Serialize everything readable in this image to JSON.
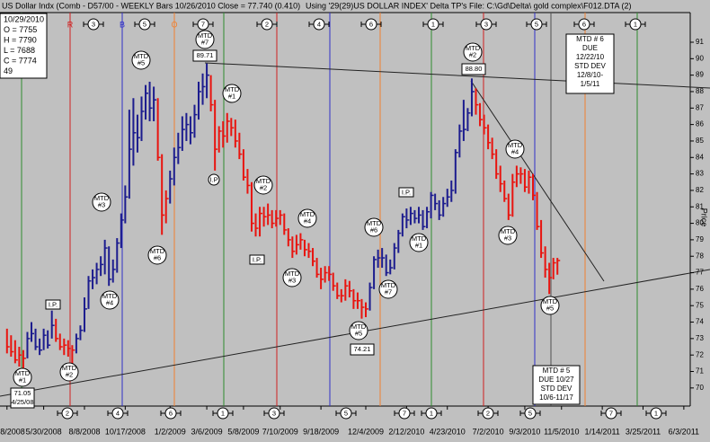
{
  "chart_data": {
    "type": "hlc",
    "title": "US Dollar Indx (Comb - D57/00 - WEEKLY Bars 10/26/2010 Close = 77.740 (0.410)",
    "subtitle": "Using '29(29)US DOLLAR INDEX' Delta TP's   File: C:\\Gd\\Delta\\ gold complex\\F012.DTA (2)",
    "y_label": "Price",
    "info_box": [
      "10/29/2010",
      "O = 7755",
      "H = 7790",
      "L = 7688",
      "C = 7774",
      "49"
    ],
    "xlim": [
      "3/16/2008",
      "6/14/2011"
    ],
    "xticks": [
      "3/28/2008",
      "5/30/2008",
      "8/8/2008",
      "10/17/2008",
      "1/2/2009",
      "3/6/2009",
      "5/8/2009",
      "7/10/2009",
      "9/18/2009",
      "12/4/2009",
      "2/12/2010",
      "4/23/2010",
      "7/2/2010",
      "9/3/2010",
      "11/5/2010",
      "1/14/2011",
      "3/25/2011",
      "6/3/2011"
    ],
    "ylim": [
      68.9,
      92.8
    ],
    "yticks": [
      70,
      71,
      72,
      73,
      74,
      75,
      76,
      77,
      78,
      79,
      80,
      81,
      82,
      83,
      84,
      85,
      86,
      87,
      88,
      89,
      90,
      91
    ],
    "series": [
      {
        "color": "#e8140f",
        "x": [
          "3/28/2008",
          "4/4/2008",
          "4/11/2008",
          "4/18/2008",
          "4/25/2008",
          "6/20/2008",
          "6/27/2008",
          "7/4/2008",
          "7/11/2008",
          "7/18/2008",
          "12/12/2008",
          "12/19/2008",
          "12/26/2008",
          "3/13/2009",
          "3/20/2009",
          "3/27/2009",
          "4/3/2009",
          "4/10/2009",
          "4/17/2009",
          "4/24/2009",
          "5/1/2009",
          "5/8/2009",
          "5/15/2009",
          "5/22/2009",
          "5/29/2009",
          "6/5/2009",
          "6/12/2009",
          "6/19/2009",
          "6/26/2009",
          "7/3/2009",
          "7/10/2009",
          "7/17/2009",
          "7/24/2009",
          "7/31/2009",
          "8/7/2009",
          "8/14/2009",
          "8/21/2009",
          "8/28/2009",
          "9/4/2009",
          "9/11/2009",
          "9/18/2009",
          "9/25/2009",
          "10/2/2009",
          "10/9/2009",
          "10/16/2009",
          "10/23/2009",
          "10/30/2009",
          "11/6/2009",
          "11/13/2009",
          "11/20/2009",
          "11/27/2009",
          "12/4/2009",
          "6/11/2010",
          "6/18/2010",
          "6/25/2010",
          "7/2/2010",
          "7/9/2010",
          "7/16/2010",
          "7/23/2010",
          "7/30/2010",
          "8/6/2010",
          "8/13/2010",
          "8/20/2010",
          "8/27/2010",
          "9/3/2010",
          "9/10/2010",
          "9/17/2010",
          "9/24/2010",
          "10/1/2010",
          "10/8/2010",
          "10/15/2010",
          "10/22/2010",
          "10/29/2010"
        ],
        "high": [
          73.6,
          73.2,
          72.9,
          72.5,
          72.3,
          74.2,
          73.3,
          73.0,
          72.9,
          72.6,
          87.6,
          84.2,
          82.0,
          89.0,
          87.5,
          85.9,
          86.2,
          86.7,
          86.4,
          86.3,
          85.5,
          84.5,
          83.3,
          82.5,
          80.6,
          81.0,
          81.0,
          81.2,
          80.8,
          80.8,
          80.8,
          80.6,
          79.7,
          79.2,
          79.3,
          79.4,
          79.0,
          78.8,
          78.5,
          77.9,
          77.3,
          77.4,
          77.4,
          77.0,
          76.4,
          76.0,
          76.6,
          76.5,
          76.0,
          75.8,
          75.4,
          75.2,
          88.2,
          87.3,
          86.6,
          86.0,
          85.2,
          84.5,
          83.5,
          82.6,
          81.8,
          83.0,
          83.5,
          83.4,
          83.3,
          83.2,
          83.0,
          81.9,
          80.2,
          78.6,
          77.6,
          77.9,
          77.9
        ],
        "low": [
          72.1,
          71.9,
          71.5,
          71.3,
          71.05,
          72.8,
          72.3,
          72.0,
          71.9,
          71.3,
          83.8,
          79.3,
          80.0,
          86.8,
          83.2,
          84.3,
          84.6,
          84.9,
          85.3,
          84.6,
          83.9,
          82.6,
          81.8,
          79.5,
          79.2,
          79.2,
          79.8,
          79.9,
          79.7,
          79.8,
          79.9,
          79.3,
          78.6,
          77.9,
          78.1,
          78.4,
          78.0,
          77.9,
          77.4,
          76.7,
          76.0,
          76.4,
          76.5,
          75.9,
          75.4,
          75.2,
          75.3,
          75.5,
          74.8,
          74.8,
          74.21,
          74.3,
          86.6,
          85.9,
          85.4,
          84.5,
          83.9,
          82.7,
          81.9,
          81.3,
          80.2,
          80.4,
          82.2,
          82.4,
          81.9,
          81.8,
          81.4,
          79.6,
          77.9,
          76.7,
          75.7,
          76.6,
          76.88
        ],
        "close": [
          72.5,
          72.2,
          71.7,
          72.0,
          71.8,
          73.0,
          72.5,
          72.6,
          72.4,
          72.3,
          84.0,
          80.5,
          81.5,
          87.2,
          84.5,
          85.6,
          85.3,
          86.2,
          85.8,
          85.0,
          84.2,
          82.8,
          82.3,
          80.0,
          79.7,
          80.6,
          80.4,
          80.5,
          80.0,
          80.3,
          80.5,
          79.6,
          79.0,
          78.3,
          78.7,
          79.0,
          78.4,
          78.3,
          77.7,
          76.9,
          76.6,
          77.0,
          76.9,
          76.2,
          75.6,
          75.6,
          76.2,
          75.9,
          75.3,
          75.3,
          74.9,
          74.8,
          87.2,
          86.3,
          85.8,
          84.9,
          84.2,
          83.0,
          82.4,
          81.5,
          80.5,
          82.5,
          83.0,
          83.0,
          82.2,
          82.8,
          81.7,
          79.8,
          78.2,
          77.2,
          76.7,
          77.6,
          77.74
        ]
      },
      {
        "color": "#1c1c8e",
        "x": [
          "5/2/2008",
          "5/9/2008",
          "5/16/2008",
          "5/23/2008",
          "5/30/2008",
          "6/6/2008",
          "6/13/2008",
          "7/25/2008",
          "8/1/2008",
          "8/8/2008",
          "8/15/2008",
          "8/22/2008",
          "8/29/2008",
          "9/5/2008",
          "9/12/2008",
          "9/19/2008",
          "9/26/2008",
          "10/3/2008",
          "10/10/2008",
          "10/17/2008",
          "10/24/2008",
          "10/31/2008",
          "11/7/2008",
          "11/14/2008",
          "11/21/2008",
          "11/28/2008",
          "12/5/2008",
          "1/2/2009",
          "1/9/2009",
          "1/16/2009",
          "1/23/2009",
          "1/30/2009",
          "2/6/2009",
          "2/13/2009",
          "2/20/2009",
          "2/27/2009",
          "3/6/2009",
          "12/11/2009",
          "12/18/2009",
          "12/25/2009",
          "1/1/2010",
          "1/8/2010",
          "1/15/2010",
          "1/22/2010",
          "1/29/2010",
          "2/5/2010",
          "2/12/2010",
          "2/19/2010",
          "2/26/2010",
          "3/5/2010",
          "3/12/2010",
          "3/19/2010",
          "3/26/2010",
          "4/2/2010",
          "4/9/2010",
          "4/16/2010",
          "4/23/2010",
          "4/30/2010",
          "5/7/2010",
          "5/14/2010",
          "5/21/2010",
          "5/28/2010",
          "6/4/2010"
        ],
        "high": [
          73.4,
          74.0,
          73.6,
          73.0,
          73.6,
          73.5,
          74.7,
          73.3,
          73.8,
          75.5,
          76.8,
          77.2,
          77.6,
          78.0,
          79.0,
          78.6,
          77.8,
          79.1,
          80.6,
          82.3,
          86.9,
          87.6,
          86.6,
          87.7,
          88.4,
          88.6,
          88.3,
          83.2,
          84.6,
          85.5,
          86.5,
          86.7,
          86.5,
          87.2,
          88.6,
          89.1,
          89.71,
          76.4,
          78.0,
          78.4,
          78.5,
          78.1,
          77.8,
          78.8,
          79.6,
          80.6,
          80.9,
          81.0,
          80.8,
          81.0,
          80.8,
          81.0,
          81.9,
          81.8,
          81.4,
          81.6,
          82.1,
          82.6,
          84.5,
          86.0,
          87.5,
          87.0,
          88.8
        ],
        "low": [
          71.8,
          72.8,
          72.3,
          72.0,
          72.3,
          72.4,
          73.0,
          72.1,
          72.9,
          73.4,
          74.8,
          76.0,
          76.3,
          76.8,
          76.9,
          76.2,
          76.4,
          77.0,
          78.5,
          80.0,
          81.5,
          83.5,
          84.3,
          85.0,
          86.3,
          86.2,
          86.2,
          81.2,
          82.3,
          83.6,
          84.4,
          85.0,
          84.8,
          85.2,
          86.3,
          87.2,
          87.6,
          74.7,
          76.0,
          77.3,
          77.3,
          76.8,
          76.9,
          77.2,
          78.2,
          79.2,
          79.7,
          79.9,
          80.0,
          80.0,
          79.6,
          79.7,
          80.3,
          80.8,
          80.2,
          80.4,
          81.0,
          81.3,
          81.8,
          84.0,
          85.0,
          85.6,
          86.5
        ],
        "close": [
          73.0,
          73.3,
          72.5,
          72.3,
          73.2,
          72.6,
          73.8,
          73.0,
          73.5,
          74.8,
          76.5,
          76.7,
          77.2,
          77.5,
          78.5,
          76.6,
          77.2,
          78.8,
          80.2,
          81.6,
          84.5,
          85.5,
          85.2,
          86.8,
          87.9,
          87.0,
          87.5,
          82.7,
          84.0,
          84.6,
          85.7,
          86.0,
          85.5,
          86.6,
          88.0,
          88.3,
          89.0,
          76.1,
          77.8,
          77.9,
          77.9,
          77.0,
          77.3,
          78.5,
          79.4,
          80.4,
          80.2,
          80.6,
          80.3,
          80.5,
          79.8,
          80.7,
          81.7,
          81.2,
          80.5,
          81.2,
          81.6,
          82.0,
          84.3,
          85.6,
          85.7,
          86.7,
          88.0
        ]
      }
    ],
    "cycle_letters": [
      "R",
      "B",
      "O",
      "G"
    ],
    "top_markers": [
      "3",
      "5",
      "7",
      "2",
      "4",
      "6",
      "1",
      "3",
      "5",
      "6",
      "1"
    ],
    "bottom_markers": [
      "2",
      "4",
      "6",
      "1",
      "3",
      "5",
      "7",
      "1",
      "2",
      "5",
      "7",
      "1"
    ],
    "mtd_circles": [
      {
        "lines": [
          "MTD",
          "#1"
        ]
      },
      {
        "lines": [
          "MTD",
          "#2"
        ]
      },
      {
        "lines": [
          "MTD",
          "#4"
        ]
      },
      {
        "lines": [
          "MTD",
          "#3"
        ]
      },
      {
        "lines": [
          "MTD",
          "#5"
        ]
      },
      {
        "lines": [
          "MTD",
          "#6"
        ]
      },
      {
        "lines": [
          "MTD",
          "#7"
        ]
      },
      {
        "lines": [
          "MTD",
          "#1"
        ]
      },
      {
        "lines": [
          "MTD",
          "#2"
        ]
      },
      {
        "lines": [
          "MTD",
          "#4"
        ]
      },
      {
        "lines": [
          "MTD",
          "#3"
        ]
      },
      {
        "lines": [
          "MTD",
          "#5"
        ]
      },
      {
        "lines": [
          "MTD",
          "#7"
        ]
      },
      {
        "lines": [
          "MTD",
          "#6"
        ]
      },
      {
        "lines": [
          "MTD",
          "#1"
        ]
      },
      {
        "lines": [
          "MTD",
          "#2"
        ]
      },
      {
        "lines": [
          "MTD",
          "#4"
        ]
      },
      {
        "lines": [
          "MTD",
          "#3"
        ]
      },
      {
        "lines": [
          "MTD",
          "#5"
        ]
      }
    ],
    "ip_labels": [
      "I.P.",
      "I.P.",
      "I.P.",
      "I.P"
    ],
    "price_boxes": [
      {
        "lines": [
          "89.71"
        ]
      },
      {
        "lines": [
          "88.80"
        ]
      },
      {
        "lines": [
          "74.21"
        ]
      },
      {
        "lines": [
          "71.05",
          "4/25/08"
        ]
      }
    ],
    "note_boxes": [
      {
        "lines": [
          "MTD # 6",
          "DUE",
          "12/22/10",
          "STD DEV",
          "12/8/10-",
          "1/5/11"
        ]
      },
      {
        "lines": [
          "MTD # 5",
          "DUE 10/27",
          "STD DEV",
          "10/6-11/17"
        ]
      }
    ]
  }
}
